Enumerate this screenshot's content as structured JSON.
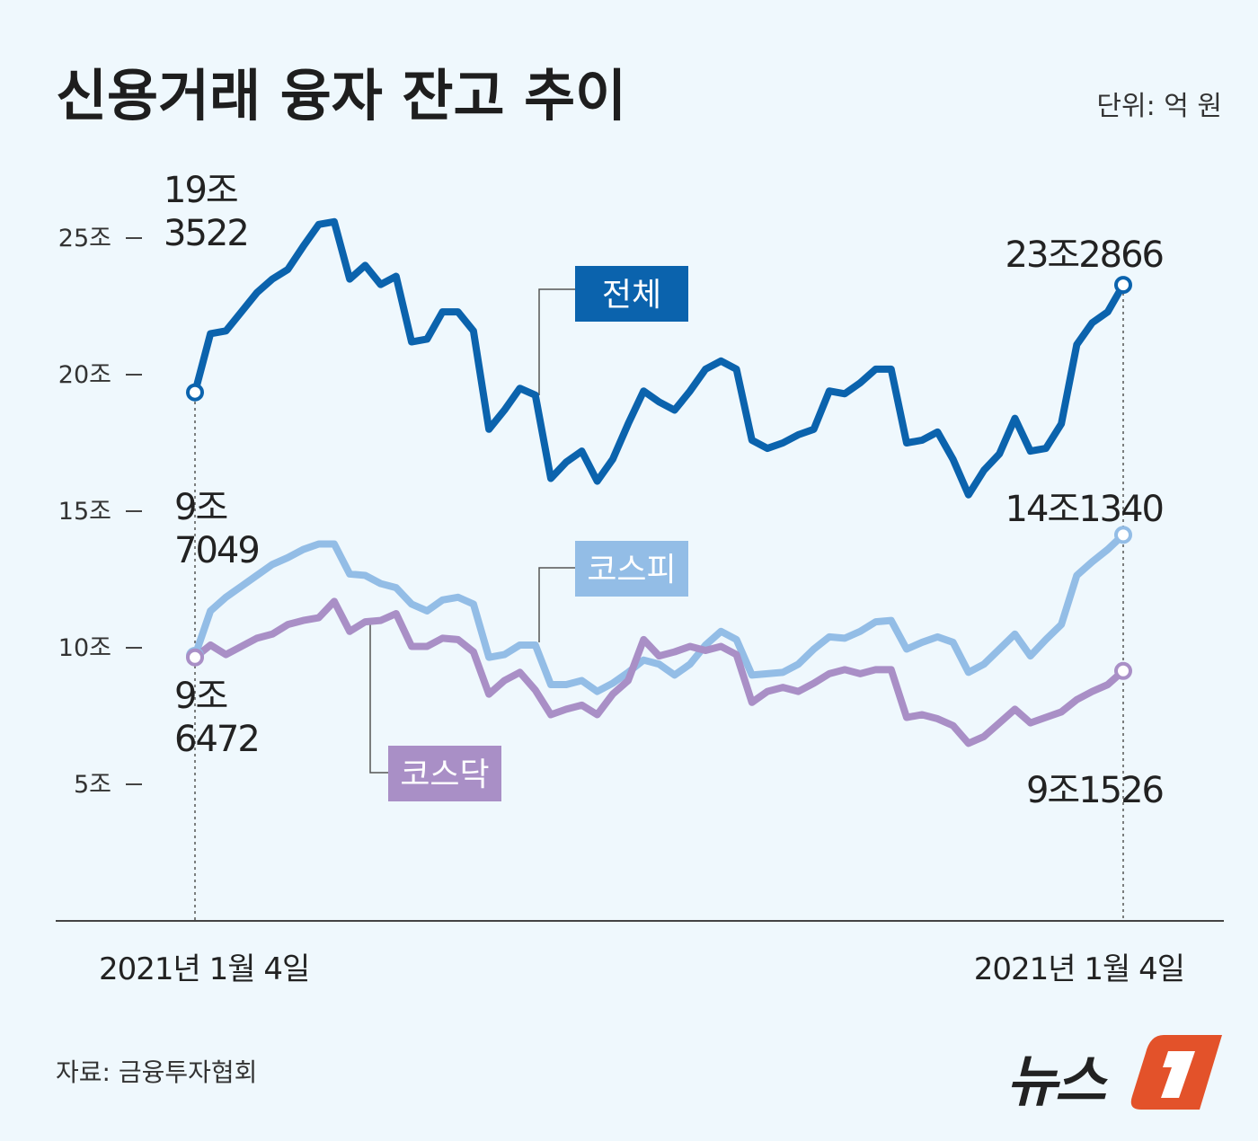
{
  "chart_data": {
    "type": "line",
    "title": "신용거래 융자 잔고 추이",
    "unit": "단위: 억 원",
    "source": "자료: 금융투자협회",
    "logo": "뉴스1",
    "y_ticks": [
      "5조",
      "10조",
      "15조",
      "20조",
      "25조"
    ],
    "y_tick_values": [
      5,
      10,
      15,
      20,
      25
    ],
    "ylim": [
      0,
      30
    ],
    "x_labels": [
      "2021년 1월 4일",
      "2021년 1월 4일"
    ],
    "grid": false,
    "series": [
      {
        "name": "전체",
        "color": "#0b63ad",
        "start_label": [
          "19조",
          "3522"
        ],
        "end_label": "23조2866",
        "values": [
          19.3522,
          21.5,
          21.6,
          22.3,
          23.0,
          23.5,
          23.85,
          24.7,
          25.5,
          25.6,
          23.5,
          24.0,
          23.3,
          23.6,
          21.2,
          21.3,
          22.3,
          22.3,
          21.6,
          18.0,
          18.7,
          19.5,
          19.25,
          16.2,
          16.8,
          17.2,
          16.1,
          16.9,
          18.2,
          19.4,
          19.0,
          18.7,
          19.4,
          20.2,
          20.5,
          20.2,
          17.6,
          17.3,
          17.5,
          17.8,
          18.0,
          19.4,
          19.3,
          19.7,
          20.2,
          20.2,
          17.5,
          17.6,
          17.9,
          16.9,
          15.6,
          16.5,
          17.1,
          18.4,
          17.2,
          17.3,
          18.2,
          21.1,
          21.9,
          22.3,
          23.2866
        ]
      },
      {
        "name": "코스피",
        "color": "#93bde6",
        "start_label": [
          "9조",
          "7049"
        ],
        "end_label": "14조1340",
        "values": [
          9.7049,
          11.35,
          11.85,
          12.25,
          12.65,
          13.05,
          13.3,
          13.6,
          13.8,
          13.8,
          12.7,
          12.65,
          12.35,
          12.2,
          11.6,
          11.35,
          11.75,
          11.85,
          11.6,
          9.65,
          9.75,
          10.1,
          10.1,
          8.65,
          8.65,
          8.8,
          8.4,
          8.7,
          9.1,
          9.55,
          9.4,
          9.0,
          9.4,
          10.1,
          10.6,
          10.3,
          9.0,
          9.05,
          9.1,
          9.4,
          9.95,
          10.4,
          10.35,
          10.6,
          10.95,
          11.0,
          9.95,
          10.2,
          10.4,
          10.2,
          9.1,
          9.4,
          9.95,
          10.5,
          9.7,
          10.3,
          10.85,
          12.65,
          13.15,
          13.6,
          14.134
        ]
      },
      {
        "name": "코스닥",
        "color": "#a98fc6",
        "start_label": [
          "9조",
          "6472"
        ],
        "end_label": "9조1526",
        "values": [
          9.6472,
          10.1,
          9.75,
          10.05,
          10.35,
          10.5,
          10.85,
          11.0,
          11.1,
          11.7,
          10.6,
          10.95,
          11.0,
          11.25,
          10.05,
          10.05,
          10.35,
          10.3,
          9.85,
          8.3,
          8.8,
          9.1,
          8.45,
          7.55,
          7.75,
          7.9,
          7.55,
          8.3,
          8.8,
          10.3,
          9.7,
          9.85,
          10.05,
          9.9,
          10.05,
          9.75,
          8.0,
          8.4,
          8.55,
          8.4,
          8.7,
          9.05,
          9.2,
          9.05,
          9.2,
          9.2,
          7.45,
          7.55,
          7.4,
          7.15,
          6.5,
          6.75,
          7.25,
          7.75,
          7.25,
          7.45,
          7.65,
          8.1,
          8.4,
          8.65,
          9.1526
        ]
      }
    ]
  }
}
